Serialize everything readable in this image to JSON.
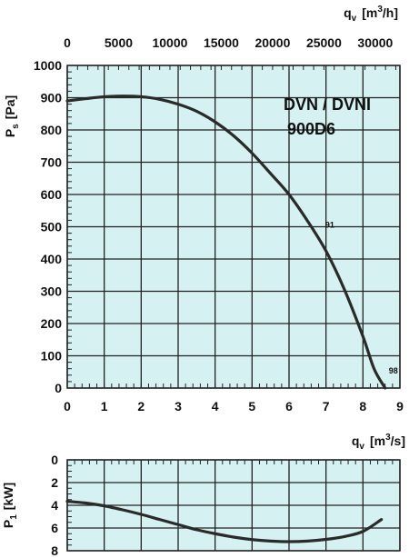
{
  "chart_data": [
    {
      "type": "line",
      "title": "DVN / DVNI",
      "subtitle": "900D6",
      "xlabel": "q_v [m3/s]",
      "xlabel_parts": {
        "base": "q",
        "sub": "v",
        "open": "[m",
        "sup": "3",
        "close": "/s]"
      },
      "x2label": "q_v [m3/h]",
      "x2label_parts": {
        "base": "q",
        "sub": "v",
        "open": "[m",
        "sup": "3",
        "close": "/h]"
      },
      "ylabel": "P_s [Pa]",
      "ylabel_parts": {
        "base": "P",
        "sub": "s",
        "unit": "[Pa]"
      },
      "xlim": [
        0,
        9
      ],
      "ylim": [
        0,
        1000
      ],
      "x2lim": [
        0,
        32400
      ],
      "xticks": [
        "0",
        "1",
        "2",
        "3",
        "4",
        "5",
        "6",
        "7",
        "8",
        "9"
      ],
      "x2ticks": [
        "0",
        "5000",
        "10000",
        "15000",
        "20000",
        "25000",
        "30000"
      ],
      "x2tick_values": [
        0,
        5000,
        10000,
        15000,
        20000,
        25000,
        30000
      ],
      "yticks": [
        "0",
        "100",
        "200",
        "300",
        "400",
        "500",
        "600",
        "700",
        "800",
        "900",
        "1000"
      ],
      "grid": true,
      "series": [
        {
          "x": [
            0,
            0.5,
            1,
            1.5,
            2,
            2.5,
            3,
            3.5,
            4,
            4.5,
            5,
            5.5,
            6,
            6.5,
            7,
            7.5,
            8,
            8.3,
            8.6
          ],
          "y": [
            890,
            897,
            903,
            905,
            903,
            895,
            880,
            858,
            825,
            782,
            728,
            665,
            600,
            518,
            425,
            305,
            160,
            60,
            0
          ]
        }
      ],
      "annotations": [
        {
          "text": "91",
          "x": 6.98,
          "y": 497
        },
        {
          "text": "98",
          "x": 8.7,
          "y": 45
        }
      ]
    },
    {
      "type": "line",
      "ylabel": "P_1 [kW]",
      "ylabel_parts": {
        "base": "P",
        "sub": "1",
        "unit": "[kW]"
      },
      "xlim": [
        0,
        9
      ],
      "ylim": [
        0,
        8
      ],
      "y_inverted": true,
      "yticks": [
        "0",
        "2",
        "4",
        "6",
        "8"
      ],
      "grid": true,
      "series": [
        {
          "x": [
            0,
            0.5,
            1,
            1.5,
            2,
            2.5,
            3,
            3.5,
            4,
            4.5,
            5,
            5.5,
            6,
            6.5,
            7,
            7.5,
            8,
            8.5
          ],
          "y": [
            3.65,
            3.8,
            4.05,
            4.4,
            4.8,
            5.25,
            5.7,
            6.15,
            6.5,
            6.8,
            7.02,
            7.15,
            7.2,
            7.15,
            7.0,
            6.75,
            6.3,
            5.25
          ]
        }
      ]
    }
  ]
}
